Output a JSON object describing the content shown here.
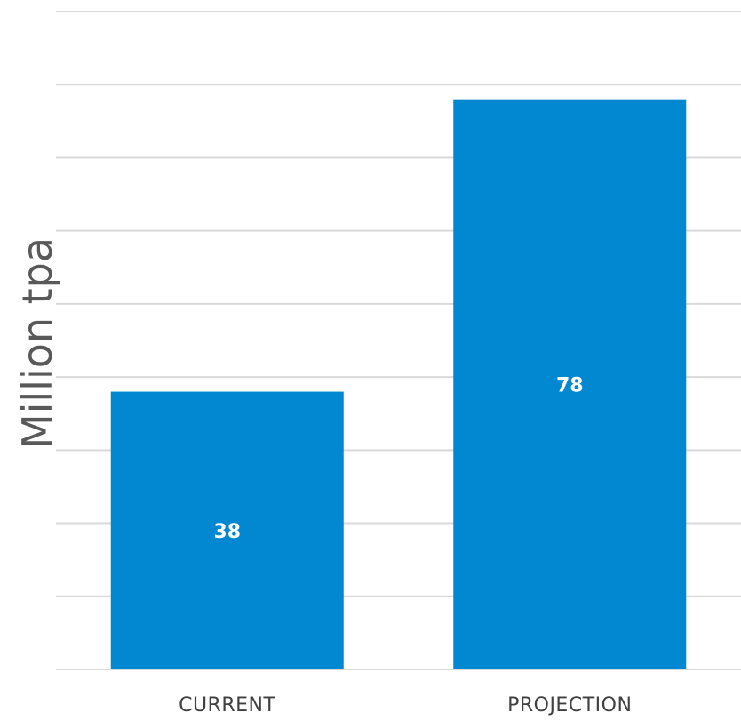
{
  "chart_data": {
    "type": "bar",
    "categories": [
      "CURRENT",
      "PROJECTION"
    ],
    "values": [
      38,
      78
    ],
    "title": "",
    "xlabel": "",
    "ylabel": "Million tpa",
    "ylim": [
      0,
      90
    ],
    "grid_step": 10,
    "grid": true,
    "legend": "none",
    "bar_color": "#0288d1",
    "grid_color": "#d9d9d9",
    "label_color": "#ffffff"
  }
}
